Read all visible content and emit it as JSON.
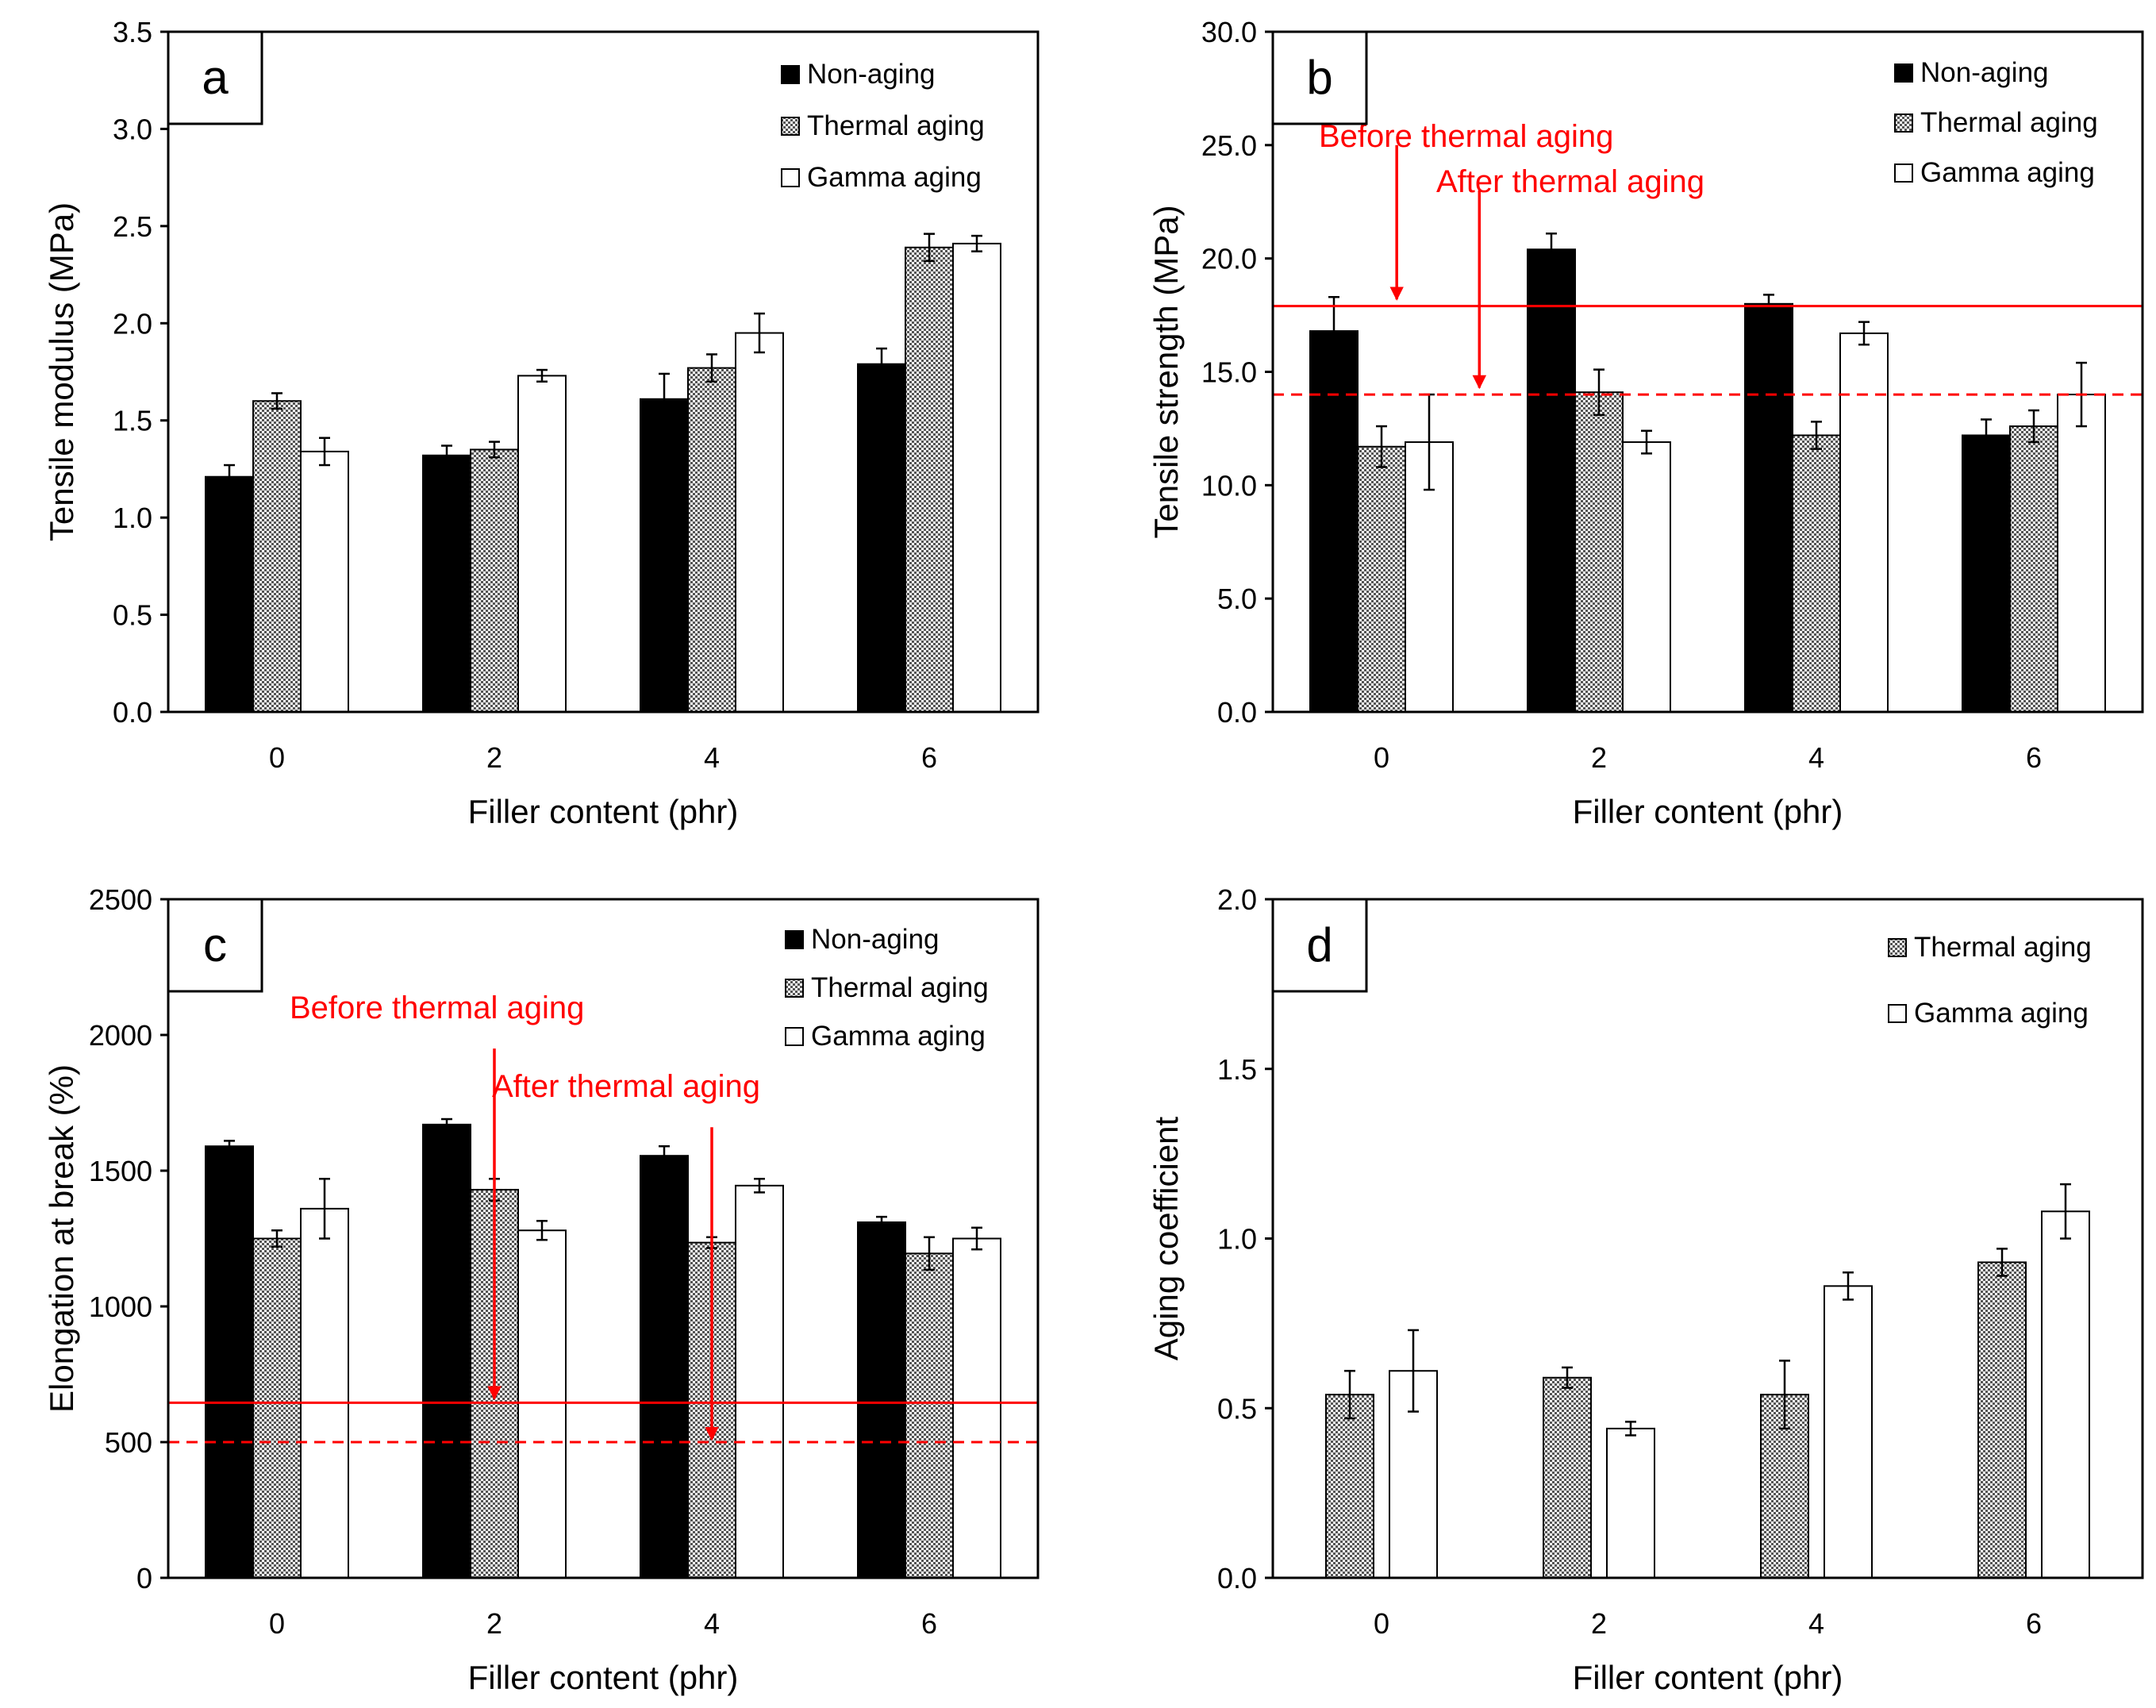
{
  "chart_data": [
    {
      "panel_label": "a",
      "type": "bar",
      "xlabel": "Filler content (phr)",
      "ylabel": "Tensile modulus (MPa)",
      "ylim": [
        0,
        3.5
      ],
      "yticks": [
        "0.0",
        "0.5",
        "1.0",
        "1.5",
        "2.0",
        "2.5",
        "3.0",
        "3.5"
      ],
      "categories": [
        "0",
        "2",
        "4",
        "6"
      ],
      "series": [
        {
          "name": "Non-aging",
          "style": "solid",
          "values": [
            1.21,
            1.32,
            1.61,
            1.79
          ],
          "errors": [
            0.06,
            0.05,
            0.13,
            0.08
          ]
        },
        {
          "name": "Thermal aging",
          "style": "checker",
          "values": [
            1.6,
            1.35,
            1.77,
            2.39
          ],
          "errors": [
            0.04,
            0.04,
            0.07,
            0.07
          ]
        },
        {
          "name": "Gamma aging",
          "style": "white",
          "values": [
            1.34,
            1.73,
            1.95,
            2.41
          ],
          "errors": [
            0.07,
            0.03,
            0.1,
            0.04
          ]
        }
      ],
      "reference_lines": [],
      "annotations": []
    },
    {
      "panel_label": "b",
      "type": "bar",
      "xlabel": "Filler content (phr)",
      "ylabel": "Tensile strength (MPa)",
      "ylim": [
        0,
        30
      ],
      "yticks": [
        "0.0",
        "5.0",
        "10.0",
        "15.0",
        "20.0",
        "25.0",
        "30.0"
      ],
      "categories": [
        "0",
        "2",
        "4",
        "6"
      ],
      "series": [
        {
          "name": "Non-aging",
          "style": "solid",
          "values": [
            16.8,
            20.4,
            18.0,
            12.2
          ],
          "errors": [
            1.5,
            0.7,
            0.4,
            0.7
          ]
        },
        {
          "name": "Thermal aging",
          "style": "checker",
          "values": [
            11.7,
            14.1,
            12.2,
            12.6
          ],
          "errors": [
            0.9,
            1.0,
            0.6,
            0.7
          ]
        },
        {
          "name": "Gamma aging",
          "style": "white",
          "values": [
            11.9,
            11.9,
            16.7,
            14.0
          ],
          "errors": [
            2.1,
            0.5,
            0.5,
            1.4
          ]
        }
      ],
      "reference_lines": [
        {
          "value": 17.9,
          "dash": false
        },
        {
          "value": 14.0,
          "dash": true
        }
      ],
      "annotations": [
        {
          "text": "Before thermal aging",
          "arrow_from": [
            0.07,
            25.0
          ],
          "arrow_to": [
            0.07,
            18.2
          ]
        },
        {
          "text": "After thermal aging",
          "arrow_from": [
            0.45,
            23.0
          ],
          "arrow_to": [
            0.45,
            14.3
          ]
        }
      ]
    },
    {
      "panel_label": "c",
      "type": "bar",
      "xlabel": "Filler content (phr)",
      "ylabel": "Elongation at break (%)",
      "ylim": [
        0,
        2500
      ],
      "yticks": [
        "0",
        "500",
        "1000",
        "1500",
        "2000",
        "2500"
      ],
      "categories": [
        "0",
        "2",
        "4",
        "6"
      ],
      "series": [
        {
          "name": "Non-aging",
          "style": "solid",
          "values": [
            1590,
            1670,
            1555,
            1310
          ],
          "errors": [
            20,
            20,
            35,
            20
          ]
        },
        {
          "name": "Thermal aging",
          "style": "checker",
          "values": [
            1250,
            1430,
            1235,
            1195
          ],
          "errors": [
            30,
            40,
            20,
            60
          ]
        },
        {
          "name": "Gamma aging",
          "style": "white",
          "values": [
            1360,
            1280,
            1445,
            1250
          ],
          "errors": [
            110,
            35,
            25,
            40
          ]
        }
      ],
      "reference_lines": [
        {
          "value": 645,
          "dash": false
        },
        {
          "value": 500,
          "dash": true
        }
      ],
      "annotations": [
        {
          "text": "Before thermal aging",
          "arrow_from": [
            1.0,
            1950
          ],
          "arrow_to": [
            1.0,
            660
          ]
        },
        {
          "text": "After thermal aging",
          "arrow_from": [
            2.0,
            1660
          ],
          "arrow_to": [
            2.0,
            510
          ]
        }
      ]
    },
    {
      "panel_label": "d",
      "type": "bar",
      "xlabel": "Filler content (phr)",
      "ylabel": "Aging coefficient",
      "ylim": [
        0,
        2.0
      ],
      "yticks": [
        "0.0",
        "0.5",
        "1.0",
        "1.5",
        "2.0"
      ],
      "categories": [
        "0",
        "2",
        "4",
        "6"
      ],
      "series": [
        {
          "name": "Thermal aging",
          "style": "checker",
          "values": [
            0.54,
            0.59,
            0.54,
            0.93
          ],
          "errors": [
            0.07,
            0.03,
            0.1,
            0.04
          ]
        },
        {
          "name": "Gamma aging",
          "style": "white",
          "values": [
            0.61,
            0.44,
            0.86,
            1.08
          ],
          "errors": [
            0.12,
            0.02,
            0.04,
            0.08
          ]
        }
      ],
      "reference_lines": [],
      "annotations": []
    }
  ]
}
